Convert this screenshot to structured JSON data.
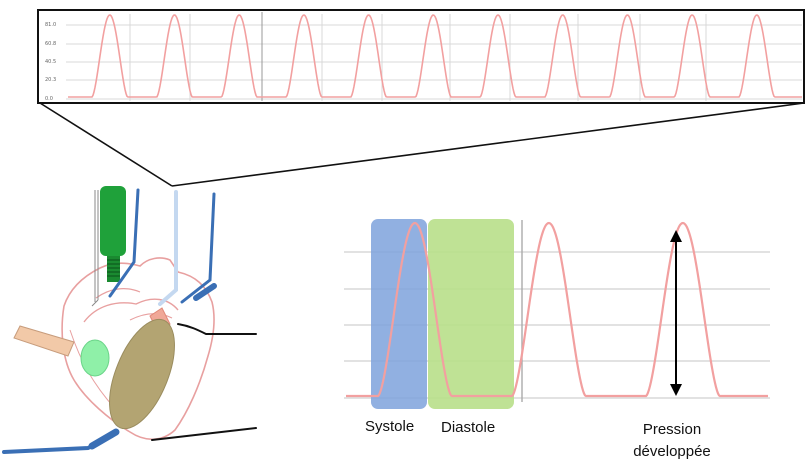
{
  "top_strip": {
    "y_ticks": [
      "81.0",
      "60.8",
      "40.5",
      "20.3",
      "0.0"
    ]
  },
  "phases": {
    "systole": "Systole",
    "diastole": "Diastole"
  },
  "measurement": {
    "line1": "Pression",
    "line2": "développée"
  },
  "colors": {
    "trace": "#f2a0a0",
    "systole_band": "#7ea2dc",
    "diastole_band": "#b8df8a",
    "tubing": "#3a6fb5",
    "heart_outline": "#e8a0a0",
    "balloon": "#b3a472",
    "probe": "#1fa13a",
    "electrode": "#f2c9a8"
  }
}
